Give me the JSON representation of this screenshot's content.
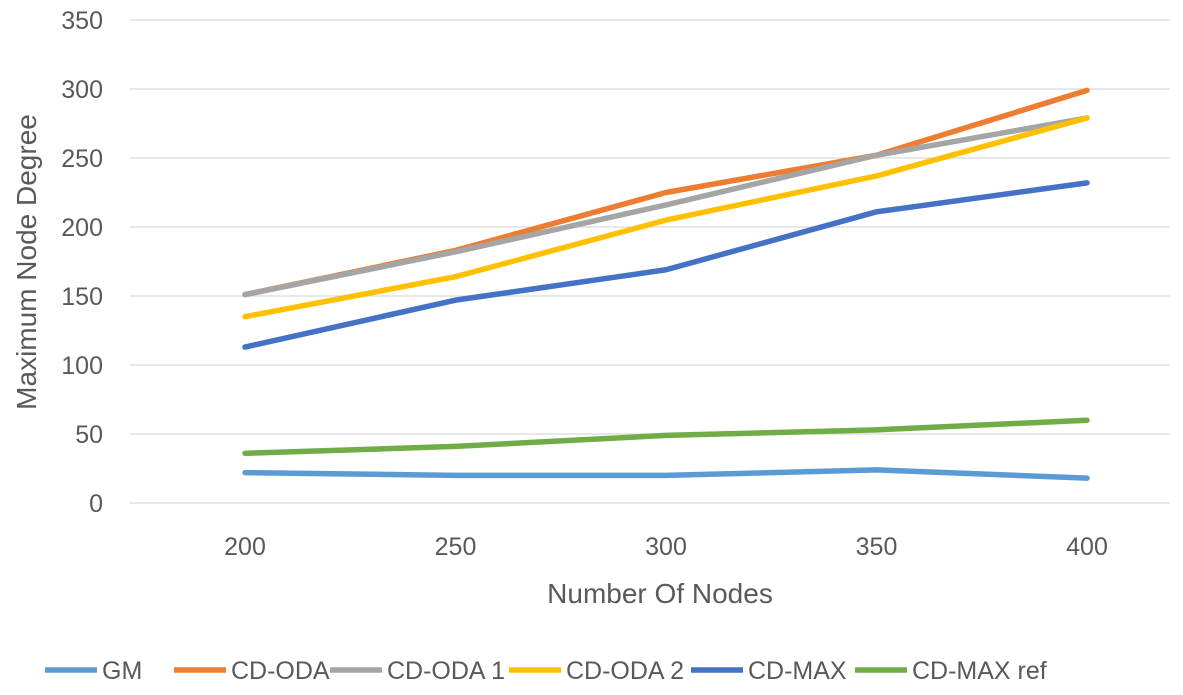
{
  "chart_data": {
    "type": "line",
    "title": "",
    "xlabel": "Number Of Nodes",
    "ylabel": "Maximum Node Degree",
    "categories": [
      "200",
      "250",
      "300",
      "350",
      "400"
    ],
    "ylim": [
      0,
      350
    ],
    "yticks": [
      "0",
      "50",
      "100",
      "150",
      "200",
      "250",
      "300",
      "350"
    ],
    "grid": "horizontal",
    "legend_position": "bottom",
    "series": [
      {
        "name": "GM",
        "color": "#5b9bd5",
        "values": [
          22,
          20,
          20,
          24,
          18
        ]
      },
      {
        "name": "CD-ODA",
        "color": "#ed7d31",
        "values": [
          151,
          183,
          225,
          252,
          299
        ]
      },
      {
        "name": "CD-ODA 1",
        "color": "#a5a5a5",
        "values": [
          151,
          182,
          216,
          252,
          279
        ]
      },
      {
        "name": "CD-ODA 2",
        "color": "#ffc000",
        "values": [
          135,
          164,
          205,
          237,
          279
        ]
      },
      {
        "name": "CD-MAX",
        "color": "#4472c4",
        "values": [
          113,
          147,
          169,
          211,
          232
        ]
      },
      {
        "name": "CD-MAX ref",
        "color": "#70ad47",
        "values": [
          36,
          41,
          49,
          53,
          60
        ]
      }
    ]
  }
}
